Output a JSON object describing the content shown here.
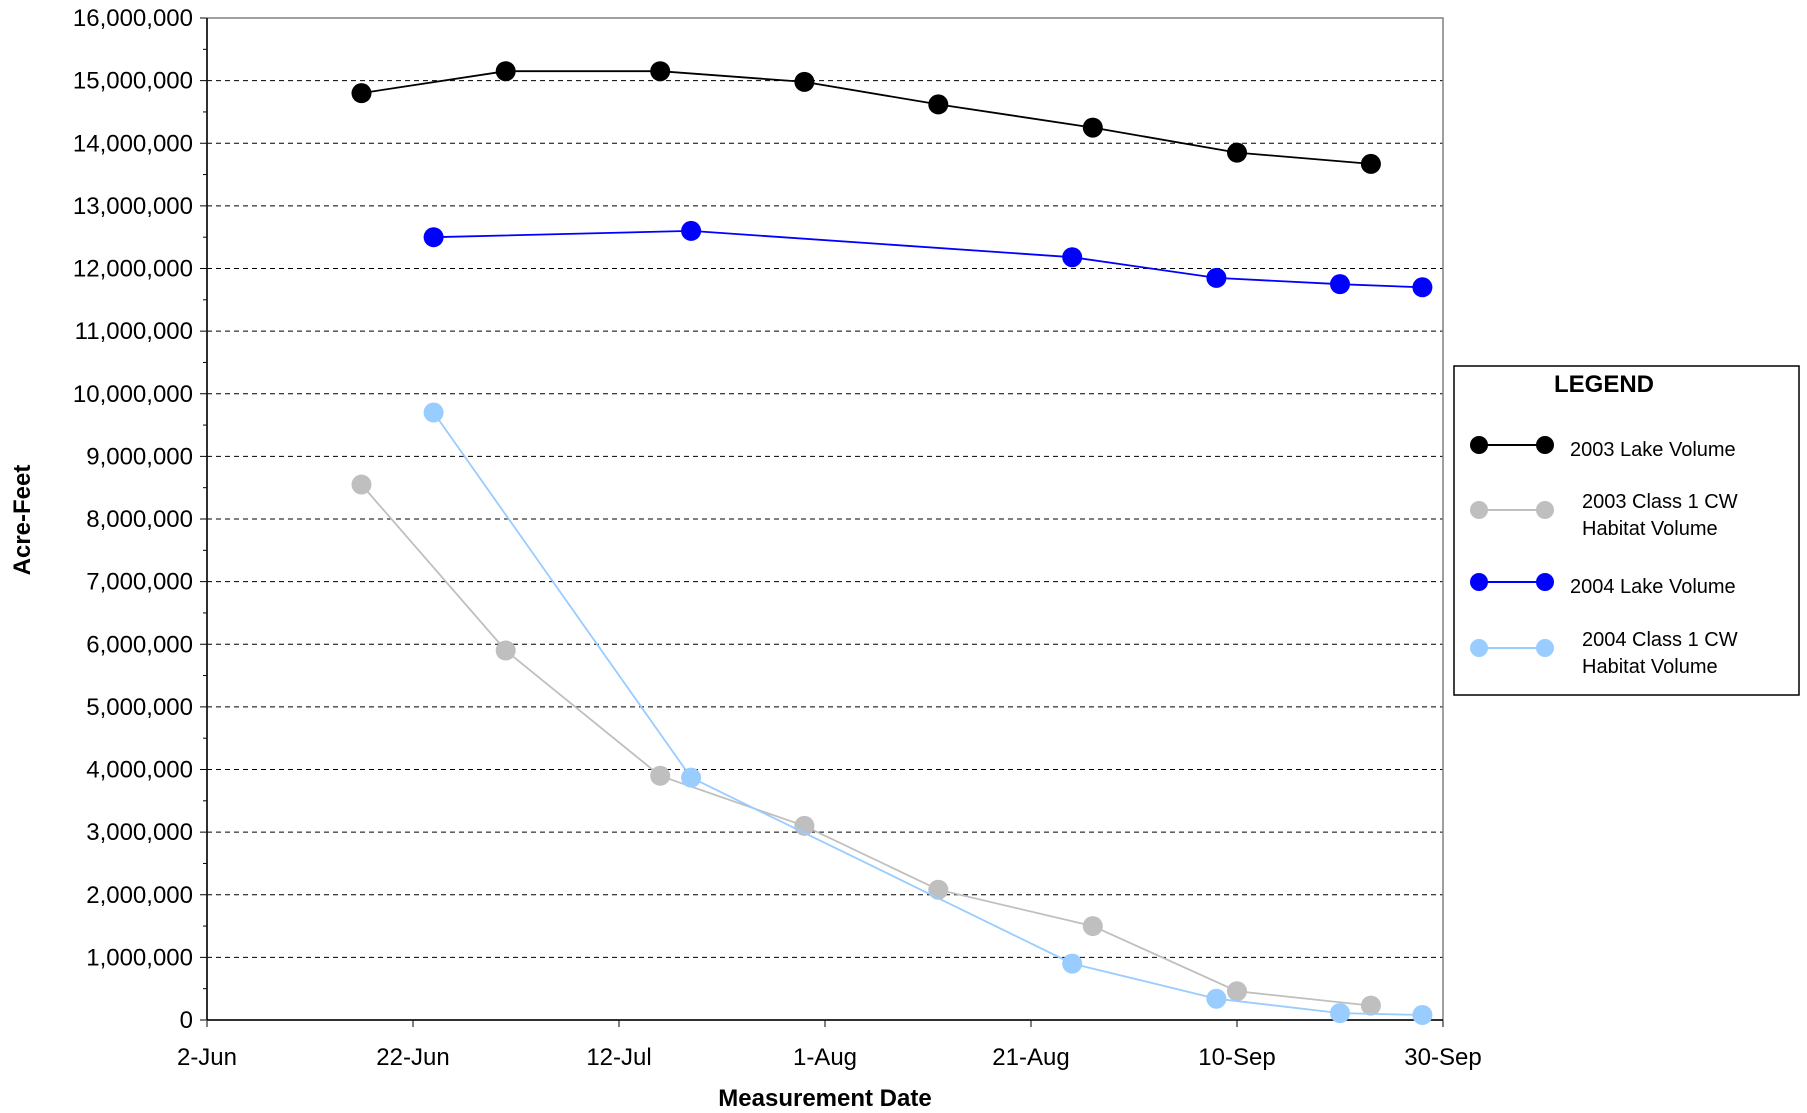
{
  "chart_data": {
    "type": "line",
    "xlabel": "Measurement Date",
    "ylabel": "Acre-Feet",
    "x_axis": {
      "ticks": [
        "2-Jun",
        "22-Jun",
        "12-Jul",
        "1-Aug",
        "21-Aug",
        "10-Sep",
        "30-Sep"
      ],
      "range": [
        "2-Jun",
        "30-Sep"
      ]
    },
    "y_axis": {
      "range": [
        0,
        16000000
      ],
      "ticks": [
        "0",
        "1,000,000",
        "2,000,000",
        "3,000,000",
        "4,000,000",
        "5,000,000",
        "6,000,000",
        "7,000,000",
        "8,000,000",
        "9,000,000",
        "10,000,000",
        "11,000,000",
        "12,000,000",
        "13,000,000",
        "14,000,000",
        "15,000,000",
        "16,000,000"
      ]
    },
    "grid": "horizontal dashed",
    "legend": {
      "title": "LEGEND",
      "placement": "right",
      "entries": [
        {
          "lines": [
            "2003 Lake Volume"
          ]
        },
        {
          "lines": [
            "2003 Class 1 CW",
            "Habitat Volume"
          ]
        },
        {
          "lines": [
            "2004 Lake Volume"
          ]
        },
        {
          "lines": [
            "2004 Class 1 CW",
            "Habitat Volume"
          ]
        }
      ]
    },
    "series": [
      {
        "name": "2003 Lake Volume",
        "color": "#000000",
        "points": [
          {
            "x": "17-Jun",
            "y": 14800000
          },
          {
            "x": "1-Jul",
            "y": 15150000
          },
          {
            "x": "16-Jul",
            "y": 15150000
          },
          {
            "x": "30-Jul",
            "y": 14980000
          },
          {
            "x": "12-Aug",
            "y": 14620000
          },
          {
            "x": "27-Aug",
            "y": 14250000
          },
          {
            "x": "10-Sep",
            "y": 13850000
          },
          {
            "x": "23-Sep",
            "y": 13670000
          }
        ]
      },
      {
        "name": "2003 Class 1 CW Habitat Volume",
        "color": "#bfbfbf",
        "points": [
          {
            "x": "17-Jun",
            "y": 8550000
          },
          {
            "x": "1-Jul",
            "y": 5900000
          },
          {
            "x": "16-Jul",
            "y": 3900000
          },
          {
            "x": "30-Jul",
            "y": 3100000
          },
          {
            "x": "12-Aug",
            "y": 2080000
          },
          {
            "x": "27-Aug",
            "y": 1500000
          },
          {
            "x": "10-Sep",
            "y": 460000
          },
          {
            "x": "23-Sep",
            "y": 230000
          }
        ]
      },
      {
        "name": "2004 Lake Volume",
        "color": "#0000ff",
        "points": [
          {
            "x": "24-Jun",
            "y": 12500000
          },
          {
            "x": "19-Jul",
            "y": 12600000
          },
          {
            "x": "25-Aug",
            "y": 12180000
          },
          {
            "x": "8-Sep",
            "y": 11850000
          },
          {
            "x": "20-Sep",
            "y": 11750000
          },
          {
            "x": "28-Sep",
            "y": 11700000
          }
        ]
      },
      {
        "name": "2004 Class 1 CW Habitat Volume",
        "color": "#99ccff",
        "points": [
          {
            "x": "24-Jun",
            "y": 9700000
          },
          {
            "x": "19-Jul",
            "y": 3870000
          },
          {
            "x": "25-Aug",
            "y": 900000
          },
          {
            "x": "8-Sep",
            "y": 340000
          },
          {
            "x": "20-Sep",
            "y": 110000
          },
          {
            "x": "28-Sep",
            "y": 80000
          }
        ]
      }
    ]
  }
}
